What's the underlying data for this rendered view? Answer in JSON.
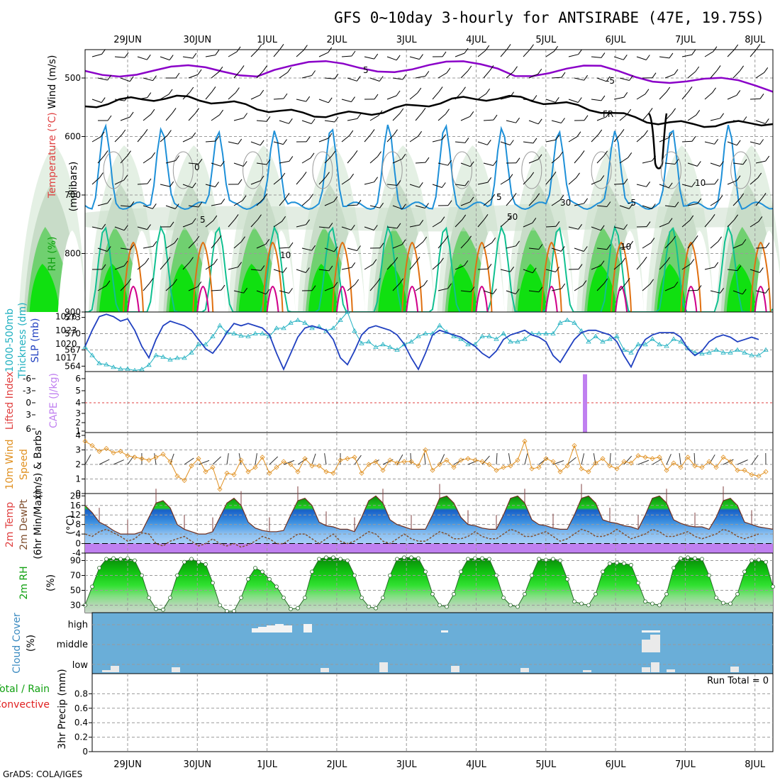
{
  "title": "GFS 0~10day 3-hourly for ANTSIRABE (47E, 19.75S)",
  "footer": "GrADS: COLA/IGES",
  "dates": [
    "29JUN",
    "30JUN",
    "1JUL",
    "2JUL",
    "3JUL",
    "4JUL",
    "5JUL",
    "6JUL",
    "7JUL",
    "8JUL"
  ],
  "colors": {
    "purple": "#8a00c8",
    "black": "#000000",
    "blue": "#1e90d8",
    "teal": "#10c090",
    "orange": "#e07010",
    "magenta": "#d0008a",
    "rh_light": "#e8f4e8",
    "rh_mid": "#c8dcc8",
    "rh_green": "#70d070",
    "rh_bright": "#10e010",
    "slp": "#2040c0",
    "thick": "#20b0c0",
    "wind10": "#e09020",
    "temp_grad_dark": "#1060c0",
    "dew": "#805030",
    "cape": "#c080f0",
    "cloud_bg": "#6aaed8",
    "cloud_fill": "#eaeaea"
  },
  "panels": {
    "upper": {
      "ylabel_parts": [
        {
          "text": "Wind (m/s)",
          "color": "#000000"
        },
        {
          "text": "Temperature (°C)",
          "color": "#e04040"
        },
        {
          "text": "(mb)",
          "color": "#000000"
        },
        {
          "text": "RH (%)",
          "color": "#10a010"
        }
      ],
      "ylabel2": "(millibars)",
      "ticks": [
        "500",
        "600",
        "700",
        "800",
        "900"
      ],
      "contour_labels": [
        "5",
        "-5",
        "FR",
        "0",
        "10",
        "5",
        "-5",
        "10",
        "30",
        "50",
        "10"
      ]
    },
    "slp": {
      "ylabel_a": "1000-500mb",
      "ylabel_b": "Thickness (dm)",
      "ylabel_c": "SLP (mb)",
      "left_ticks": [
        "573",
        "570",
        "567",
        "564"
      ],
      "right_ticks": [
        "1026",
        "1023",
        "1020",
        "1017"
      ]
    },
    "cape": {
      "ylabel_a": "Lifted Index",
      "ylabel_b": "CAPE (J/kg)",
      "left_ticks": [
        "-6",
        "-3",
        "0",
        "3",
        "6"
      ],
      "right_ticks": [
        "6",
        "5",
        "4",
        "3",
        "2",
        "1"
      ]
    },
    "wind10": {
      "ylabel_a": "10m Wind",
      "ylabel_b": "Speed",
      "ylabel_c": "(m/s) & Barbs",
      "ticks": [
        "4",
        "3",
        "2",
        "1",
        "0"
      ]
    },
    "temp": {
      "ylabel_a": "2m Temp",
      "ylabel_b": "2m DewPt",
      "ylabel_c": "(6hr Min/Max)",
      "unit": "(°C)",
      "ticks": [
        "20",
        "16",
        "12",
        "8",
        "4",
        "0",
        "-4"
      ]
    },
    "rh": {
      "ylabel_a": "2m RH",
      "unit": "(%)",
      "ticks": [
        "90",
        "70",
        "50",
        "30"
      ]
    },
    "cloud": {
      "ylabel_a": "Cloud Cover",
      "unit": "(%)",
      "levels": [
        "high",
        "middle",
        "low"
      ]
    },
    "precip": {
      "ylabel_a": "Total / Rain",
      "ylabel_b": "Convective",
      "ylabel_c": "3hr Precip (mm)",
      "run_total": "Run Total = 0",
      "ticks": [
        "0.8",
        "0.6",
        "0.4",
        "0.2",
        "0"
      ]
    }
  },
  "chart_data": [
    {
      "type": "line",
      "title": "SLP (mb) and 1000-500mb Thickness (dm)",
      "x_unit": "3-hourly steps from 28JUN 00Z",
      "series": [
        {
          "name": "SLP (mb)",
          "values": [
            1019.5,
            1023,
            1026,
            1026.5,
            1026,
            1025,
            1025.5,
            1023,
            1019.5,
            1017,
            1021,
            1024,
            1025,
            1024.5,
            1024,
            1023,
            1021,
            1019,
            1018,
            1020,
            1022.5,
            1024.5,
            1024,
            1024.5,
            1024,
            1023.5,
            1022,
            1018,
            1014.5,
            1018,
            1021.5,
            1023.5,
            1024,
            1023.5,
            1023,
            1021,
            1017,
            1015.5,
            1018.5,
            1022,
            1023.5,
            1024,
            1023.5,
            1023,
            1022,
            1020,
            1017,
            1014.5,
            1018,
            1022,
            1023,
            1022.5,
            1022,
            1021.5,
            1020.5,
            1019.5,
            1018,
            1017,
            1018.5,
            1021,
            1022,
            1022.5,
            1023,
            1022,
            1021.5,
            1020.5,
            1017.5,
            1016,
            1018.5,
            1021,
            1022.5,
            1023,
            1023,
            1022.5,
            1022,
            1020.5,
            1017.5,
            1015,
            1018.5,
            1021,
            1022,
            1022.5,
            1022.5,
            1022.5,
            1021.5,
            1019,
            1017.5,
            1018.5,
            1020.5,
            1021.5,
            1022,
            1021.5,
            1020.5,
            1021,
            1021.5,
            1021
          ]
        },
        {
          "name": "1000-500mb Thickness (dm)",
          "values": [
            567.5,
            566,
            564.5,
            564.3,
            563.8,
            563.5,
            563.5,
            563.2,
            563.4,
            564.2,
            566,
            565.7,
            565.2,
            565.5,
            565.5,
            566.5,
            568,
            568,
            569.5,
            571.5,
            570.2,
            570,
            569.6,
            569.5,
            570,
            570,
            569.5,
            571,
            571,
            572,
            572.5,
            572,
            571,
            571.3,
            570.5,
            571,
            572.5,
            574,
            570.5,
            568.2,
            568.5,
            567.5,
            568,
            567.5,
            567,
            568,
            568.5,
            569.5,
            570,
            570,
            571.5,
            570.3,
            569.5,
            569,
            568,
            568,
            569.5,
            569.5,
            569,
            570,
            568.5,
            568.5,
            569,
            570,
            570,
            570,
            570,
            572,
            572.5,
            572,
            570.5,
            568.5,
            569.5,
            568.5,
            569,
            569.5,
            567,
            566.5,
            568,
            568,
            569,
            568,
            567.7,
            569,
            568.5,
            567.3,
            566.5,
            566.3,
            566.5,
            567,
            566.5,
            566.5,
            567,
            566.5,
            566,
            566,
            567
          ]
        }
      ],
      "ylim_left": [
        563,
        574
      ],
      "ylim_right": [
        1014,
        1027
      ]
    },
    {
      "type": "bar",
      "title": "CAPE (J/kg) / Lifted Index",
      "bars": [
        {
          "day": "6JUL",
          "time_step": 70.5,
          "value": 6
        }
      ],
      "lifted_index_line": 0,
      "ylim": [
        0,
        6.3
      ]
    },
    {
      "type": "line",
      "title": "10m Wind Speed (m/s)",
      "series": [
        {
          "name": "10m Wind Speed",
          "values": [
            3.6,
            3.3,
            2.9,
            3.1,
            2.8,
            2.9,
            2.6,
            2.5,
            2.4,
            2.3,
            2.5,
            2.7,
            2.2,
            1.2,
            0.9,
            1.9,
            2.4,
            1.5,
            1.8,
            0.3,
            1.4,
            1.3,
            2.3,
            1.5,
            1.8,
            2.5,
            1.4,
            1.8,
            2.2,
            2.0,
            1.5,
            2.4,
            1.9,
            1.9,
            1.5,
            1.4,
            2.3,
            2.4,
            2.5,
            1.4,
            2.0,
            2.2,
            1.6,
            2.3,
            2.1,
            2.2,
            2.2,
            1.9,
            3.0,
            1.6,
            2.0,
            2.3,
            1.8,
            2.3,
            2.4,
            2.3,
            2.2,
            2.0,
            1.6,
            1.8,
            1.9,
            2.3,
            3.6,
            1.7,
            1.8,
            2.4,
            2.2,
            1.5,
            1.9,
            3.3,
            1.7,
            1.5,
            2.1,
            2.4,
            1.9,
            1.7,
            2.2,
            2.1,
            2.6,
            2.5,
            2.4,
            2.5,
            1.6,
            2.1,
            1.8,
            2.5,
            1.9,
            1.8,
            2.2,
            1.8,
            2.5,
            2.2,
            1.6,
            1.6,
            1.3,
            1.2,
            1.5
          ]
        }
      ],
      "ylim": [
        0,
        4
      ]
    },
    {
      "type": "area",
      "title": "2m Temp / 2m DewPt (°C)",
      "series": [
        {
          "name": "2m Temp",
          "values": [
            16,
            13,
            9,
            7.5,
            5.5,
            4,
            4,
            4,
            5,
            11,
            17,
            18,
            15,
            8,
            6,
            5,
            4,
            4,
            5,
            11,
            17,
            19,
            16,
            9,
            6.5,
            5.5,
            5,
            5,
            5.5,
            12,
            18,
            19,
            16,
            9,
            7.5,
            7,
            6,
            6,
            5,
            11,
            18,
            20,
            17,
            10,
            8,
            7,
            6,
            6,
            6,
            12,
            19,
            20,
            17,
            11,
            8,
            7.5,
            6.5,
            6,
            6,
            12,
            19,
            20,
            17,
            10,
            8,
            7.5,
            6.5,
            6,
            6,
            12,
            19,
            20,
            17,
            10,
            9,
            8.5,
            7.5,
            7,
            6,
            12,
            19,
            20,
            17,
            10,
            8.5,
            7.5,
            7,
            7,
            6,
            11,
            18,
            19,
            16,
            9,
            8,
            7,
            6.5,
            6
          ]
        },
        {
          "name": "2m DewPt",
          "values": [
            4,
            3,
            5,
            6,
            4.5,
            3,
            1,
            2,
            4.5,
            4,
            0,
            -1,
            1,
            2,
            3,
            1,
            -1,
            0,
            2,
            0,
            -1,
            0,
            -1.5,
            -0.5,
            1,
            3,
            2,
            0,
            0,
            2,
            4,
            4,
            2,
            0,
            2,
            4,
            1,
            0,
            1,
            3,
            5,
            4,
            1,
            0,
            2,
            4,
            2,
            1,
            1,
            3,
            5,
            4,
            2,
            2,
            3,
            5,
            3,
            2,
            2,
            4,
            6,
            5,
            3,
            3,
            4,
            5,
            3,
            1,
            2,
            4,
            6,
            5,
            3,
            3,
            4,
            6,
            4,
            2,
            3,
            4,
            6,
            5,
            3,
            3,
            4,
            5,
            3,
            2,
            3,
            4,
            6,
            5,
            3,
            2,
            3,
            4
          ]
        }
      ],
      "ylim": [
        -4,
        21
      ]
    },
    {
      "type": "area",
      "title": "2m RH (%)",
      "series": [
        {
          "name": "2m RH",
          "values": [
            30,
            55,
            80,
            92,
            93,
            92,
            93,
            90,
            70,
            40,
            25,
            24,
            40,
            70,
            88,
            92,
            88,
            85,
            60,
            30,
            22,
            22,
            40,
            65,
            80,
            75,
            65,
            55,
            40,
            25,
            26,
            40,
            75,
            92,
            94,
            94,
            92,
            90,
            70,
            40,
            28,
            26,
            40,
            70,
            92,
            94,
            94,
            93,
            75,
            45,
            30,
            28,
            45,
            75,
            92,
            93,
            93,
            92,
            70,
            40,
            30,
            28,
            45,
            70,
            92,
            91,
            92,
            90,
            65,
            35,
            32,
            30,
            45,
            75,
            86,
            87,
            86,
            84,
            60,
            35,
            32,
            30,
            45,
            80,
            93,
            94,
            93,
            92,
            70,
            40,
            33,
            32,
            45,
            75,
            90,
            91,
            88,
            55
          ]
        }
      ],
      "ylim": [
        20,
        100
      ]
    },
    {
      "type": "bar",
      "title": "Cloud Cover (%)",
      "series": [
        {
          "name": "high",
          "bars": [
            {
              "day": "1JUL",
              "value": 30
            },
            {
              "day": "1JUL",
              "value": 40
            },
            {
              "day": "1JUL",
              "value": 50
            },
            {
              "day": "1JUL",
              "value": 60
            },
            {
              "day": "1JUL",
              "value": 50
            },
            {
              "day": "1JUL",
              "value": 60
            },
            {
              "day": "6JUL",
              "value": 5
            }
          ]
        },
        {
          "name": "middle",
          "bars": [
            {
              "day": "6JUL",
              "value": 60
            },
            {
              "day": "6JUL",
              "value": 80
            }
          ]
        },
        {
          "name": "low",
          "bars": [
            {
              "day": "28JUN",
              "value": 10
            },
            {
              "day": "29JUN",
              "value": 25
            },
            {
              "day": "30JUN",
              "value": 20
            },
            {
              "day": "2JUL",
              "value": 20
            },
            {
              "day": "3JUL",
              "value": 60
            },
            {
              "day": "4JUL",
              "value": 30
            },
            {
              "day": "5JUL",
              "value": 20
            },
            {
              "day": "6JUL",
              "value": 50
            },
            {
              "day": "7JUL",
              "value": 15
            },
            {
              "day": "8JUL",
              "value": 25
            }
          ]
        }
      ]
    },
    {
      "type": "bar",
      "title": "3hr Precip (mm)",
      "values": [],
      "ylim": [
        0,
        1
      ]
    }
  ]
}
